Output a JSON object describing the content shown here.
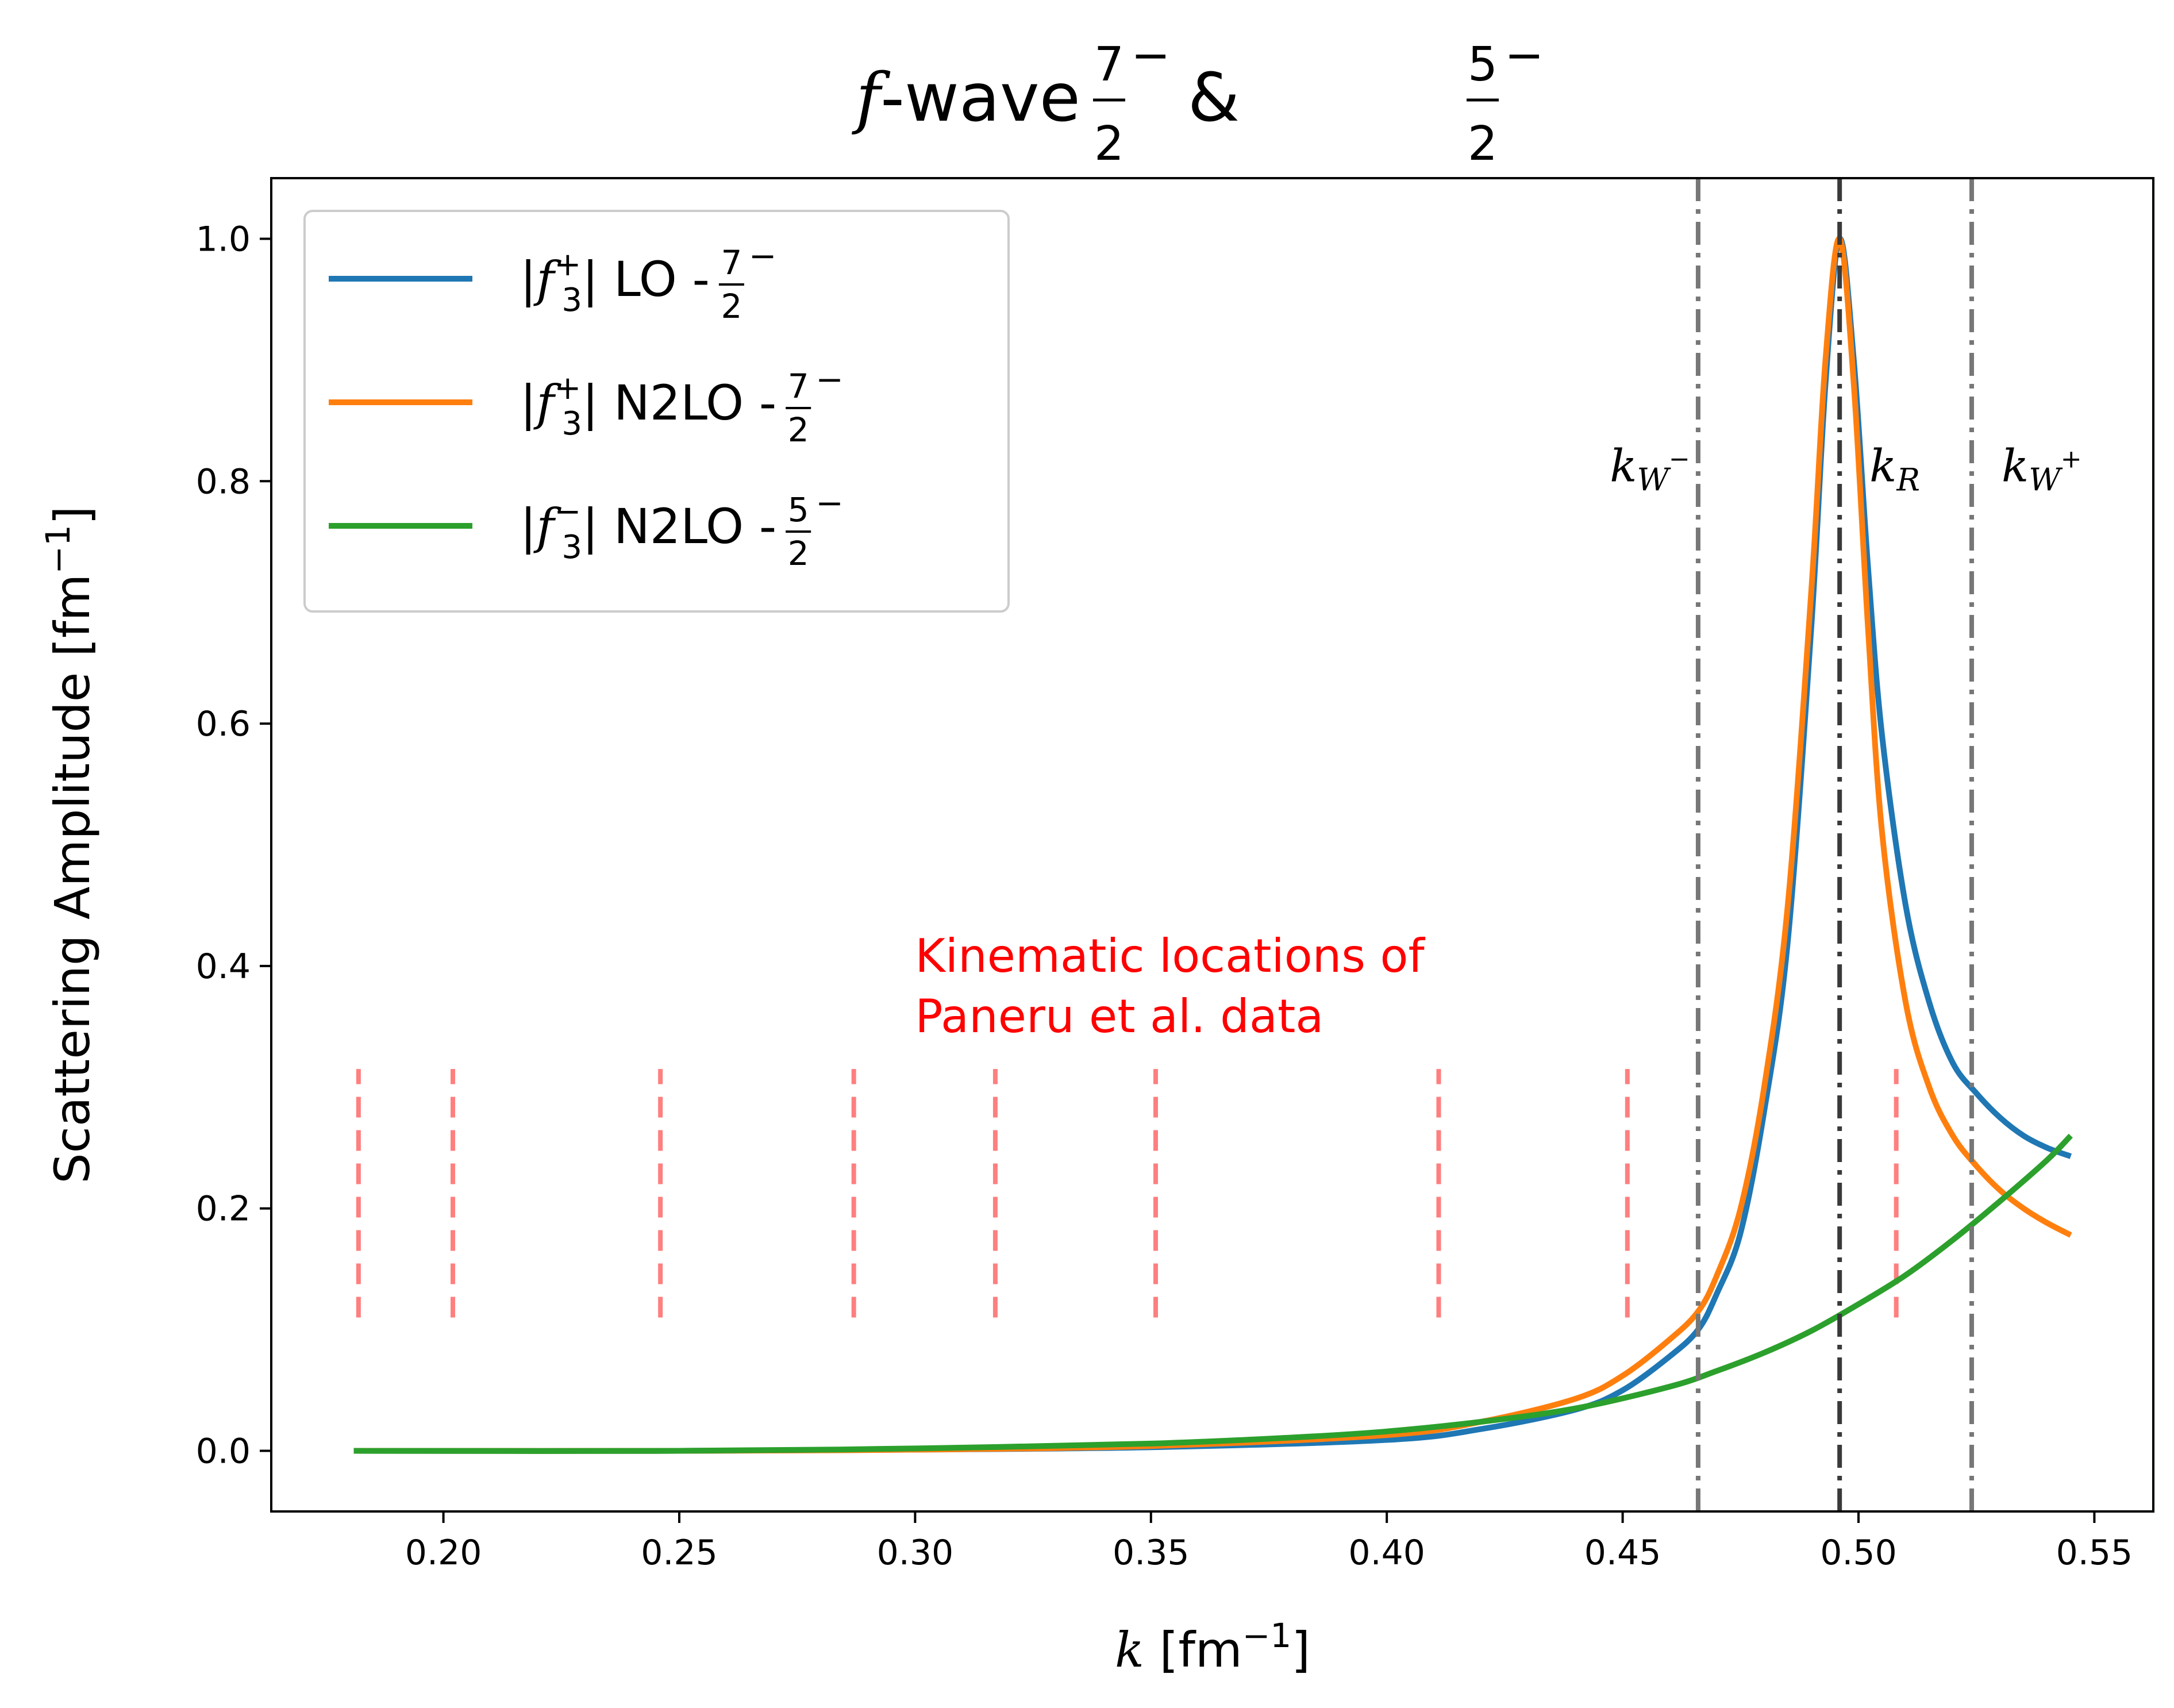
{
  "chart_data": {
    "type": "line",
    "title": {
      "prefix": "f",
      "text": "-wave ",
      "frac1_num": "7",
      "frac1_den": "2",
      "sep": " & ",
      "frac2_num": "5",
      "frac2_den": "2",
      "parity": "−"
    },
    "xlabel": {
      "var": "k",
      "unit": " [fm",
      "exp": "−1",
      "close": "]"
    },
    "ylabel": {
      "text": "Scattering Amplitude [fm",
      "exp": "−1",
      "close": "]"
    },
    "xlim": [
      0.1635,
      0.5625
    ],
    "ylim": [
      -0.05,
      1.05
    ],
    "xticks": [
      0.2,
      0.25,
      0.3,
      0.35,
      0.4,
      0.45,
      0.5,
      0.55
    ],
    "xtick_labels": [
      "0.20",
      "0.25",
      "0.30",
      "0.35",
      "0.40",
      "0.45",
      "0.50",
      "0.55"
    ],
    "yticks": [
      0.0,
      0.2,
      0.4,
      0.6,
      0.8,
      1.0
    ],
    "ytick_labels": [
      "0.0",
      "0.2",
      "0.4",
      "0.6",
      "0.8",
      "1.0"
    ],
    "legend_position": "top-left",
    "series": [
      {
        "name": "|f3+| LO - 7/2-",
        "label": {
          "f": "f",
          "sub": "3",
          "sup": "+",
          "rest": "| LO - ",
          "num": "7",
          "den": "2",
          "parity": "−"
        },
        "color": "#1f77b4",
        "x": [
          0.181,
          0.25,
          0.3,
          0.35,
          0.4,
          0.42,
          0.44,
          0.45,
          0.46,
          0.466,
          0.47,
          0.475,
          0.48,
          0.485,
          0.49,
          0.493,
          0.496,
          0.499,
          0.502,
          0.505,
          0.51,
          0.515,
          0.52,
          0.525,
          0.53,
          0.535,
          0.54,
          0.545
        ],
        "y": [
          0.0,
          0.0,
          0.001,
          0.003,
          0.009,
          0.018,
          0.034,
          0.05,
          0.078,
          0.1,
          0.13,
          0.18,
          0.28,
          0.42,
          0.68,
          0.88,
          1.0,
          0.9,
          0.73,
          0.59,
          0.45,
          0.37,
          0.32,
          0.295,
          0.275,
          0.26,
          0.25,
          0.243
        ]
      },
      {
        "name": "|f3+| N2LO - 7/2-",
        "label": {
          "f": "f",
          "sub": "3",
          "sup": "+",
          "rest": "| N2LO - ",
          "num": "7",
          "den": "2",
          "parity": "−"
        },
        "color": "#ff7f0e",
        "x": [
          0.181,
          0.25,
          0.3,
          0.35,
          0.4,
          0.42,
          0.44,
          0.45,
          0.46,
          0.466,
          0.47,
          0.475,
          0.48,
          0.485,
          0.49,
          0.493,
          0.496,
          0.499,
          0.502,
          0.505,
          0.51,
          0.515,
          0.52,
          0.525,
          0.53,
          0.535,
          0.54,
          0.545
        ],
        "y": [
          0.0,
          0.0,
          0.001,
          0.004,
          0.013,
          0.024,
          0.043,
          0.062,
          0.092,
          0.115,
          0.145,
          0.2,
          0.3,
          0.45,
          0.71,
          0.9,
          1.0,
          0.88,
          0.68,
          0.51,
          0.37,
          0.3,
          0.26,
          0.235,
          0.215,
          0.2,
          0.188,
          0.178
        ]
      },
      {
        "name": "|f3-| N2LO - 5/2-",
        "label": {
          "f": "f",
          "sub": "3",
          "sup": "−",
          "rest": "| N2LO - ",
          "num": "5",
          "den": "2",
          "parity": "−"
        },
        "color": "#2ca02c",
        "x": [
          0.181,
          0.25,
          0.3,
          0.35,
          0.38,
          0.4,
          0.42,
          0.44,
          0.46,
          0.47,
          0.48,
          0.49,
          0.5,
          0.51,
          0.52,
          0.53,
          0.54,
          0.545
        ],
        "y": [
          0.0,
          0.0,
          0.002,
          0.006,
          0.011,
          0.016,
          0.024,
          0.035,
          0.053,
          0.066,
          0.081,
          0.099,
          0.121,
          0.145,
          0.174,
          0.206,
          0.24,
          0.26
        ]
      }
    ],
    "vlines": [
      {
        "x": 0.466,
        "label": {
          "k": "k",
          "sub": "W",
          "sup": "−"
        },
        "color": "#777777",
        "anchor": "left",
        "ymin": -0.05,
        "ymax": 1.05
      },
      {
        "x": 0.496,
        "label": {
          "k": "k",
          "sub": "R",
          "sup": ""
        },
        "color": "#3a3a3a",
        "anchor": "right",
        "ymin": -0.05,
        "ymax": 1.05
      },
      {
        "x": 0.524,
        "label": {
          "k": "k",
          "sub": "W",
          "sup": "+"
        },
        "color": "#777777",
        "anchor": "right",
        "ymin": -0.05,
        "ymax": 1.05
      }
    ],
    "data_markers": {
      "x": [
        0.182,
        0.202,
        0.246,
        0.287,
        0.317,
        0.351,
        0.411,
        0.451,
        0.508
      ],
      "ymin": 0.11,
      "ymax": 0.315,
      "color": "#ff0000",
      "annotation_lines": [
        "Kinematic locations of",
        "Paneru et al. data"
      ],
      "annotation_x": 0.3,
      "annotation_y": 0.4
    }
  }
}
